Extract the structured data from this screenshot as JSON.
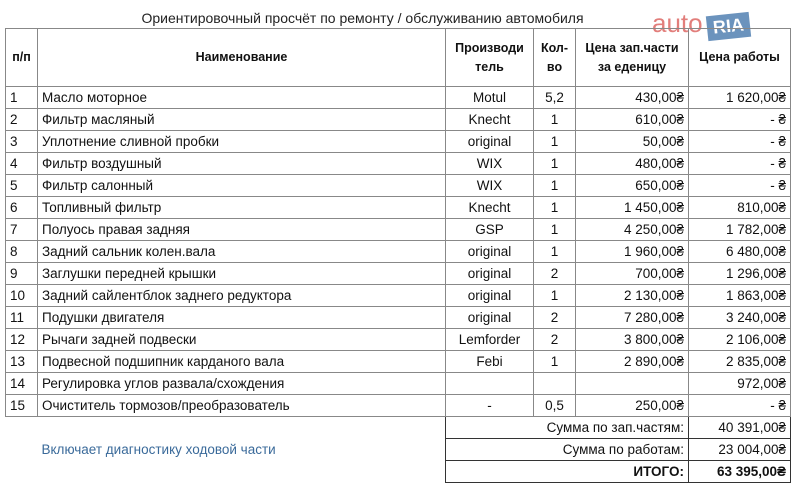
{
  "title": "Ориентировочный просчёт по ремонту / обслуживанию автомобиля",
  "watermark": {
    "brand": "auto",
    "tag": "RIA"
  },
  "header": {
    "num": "п/п",
    "name": "Наименование",
    "maker": [
      "Производи",
      "тель"
    ],
    "qty": [
      "Кол-",
      "во"
    ],
    "part_price": [
      "Цена зап.части",
      "за еденицу"
    ],
    "work_price": "Цена работы"
  },
  "rows": [
    [
      "1",
      "Масло моторное",
      "Motul",
      "5,2",
      "430,00₴",
      "1 620,00₴"
    ],
    [
      "2",
      "Фильтр масляный",
      "Knecht",
      "1",
      "610,00₴",
      "-   ₴"
    ],
    [
      "3",
      "Уплотнение сливной пробки",
      "original",
      "1",
      "50,00₴",
      "-   ₴"
    ],
    [
      "4",
      "Фильтр воздушный",
      "WIX",
      "1",
      "480,00₴",
      "-   ₴"
    ],
    [
      "5",
      "Фильтр салонный",
      "WIX",
      "1",
      "650,00₴",
      "-   ₴"
    ],
    [
      "6",
      "Топливный фильтр",
      "Knecht",
      "1",
      "1 450,00₴",
      "810,00₴"
    ],
    [
      "7",
      "Полуось правая задняя",
      "GSP",
      "1",
      "4 250,00₴",
      "1 782,00₴"
    ],
    [
      "8",
      "Задний сальник колен.вала",
      "original",
      "1",
      "1 960,00₴",
      "6 480,00₴"
    ],
    [
      "9",
      "Заглушки передней крышки",
      "original",
      "2",
      "700,00₴",
      "1 296,00₴"
    ],
    [
      "10",
      "Задний сайлентблок заднего редуктора",
      "original",
      "1",
      "2 130,00₴",
      "1 863,00₴"
    ],
    [
      "11",
      "Подушки двигателя",
      "original",
      "2",
      "7 280,00₴",
      "3 240,00₴"
    ],
    [
      "12",
      "Рычаги задней подвески",
      "Lemforder",
      "2",
      "3 800,00₴",
      "2 106,00₴"
    ],
    [
      "13",
      "Подвесной подшипник карданого вала",
      "Febi",
      "1",
      "2 890,00₴",
      "2 835,00₴"
    ],
    [
      "14",
      "Регулировка углов развала/схождения",
      null,
      null,
      null,
      "972,00₴"
    ],
    [
      "15",
      "Очиститель тормозов/преобразователь",
      "-",
      "0,5",
      "250,00₴",
      "-   ₴"
    ]
  ],
  "note": "Включает диагностику ходовой части",
  "totals": [
    {
      "label": "Сумма по зап.частям:",
      "value": "40 391,00₴"
    },
    {
      "label": "Сумма по работам:",
      "value": "23 004,00₴"
    },
    {
      "label": "ИТОГО:",
      "value": "63 395,00₴"
    }
  ]
}
